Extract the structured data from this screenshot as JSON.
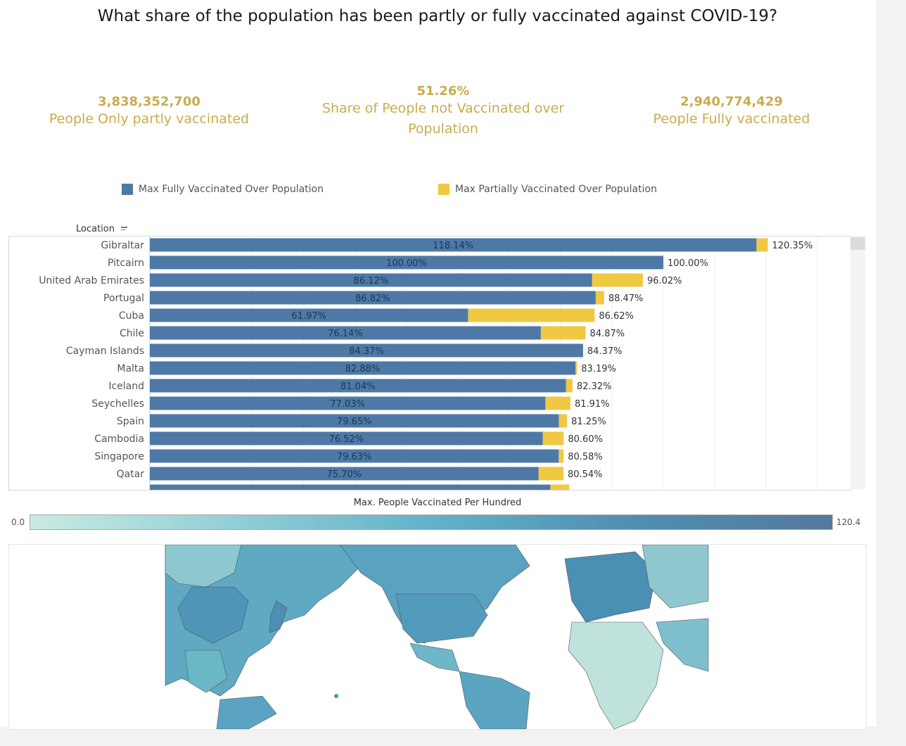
{
  "title": "What share of the population has been partly or fully vaccinated against COVID-19?",
  "kpis": {
    "partly": {
      "value": "3,838,352,700",
      "label": "People Only partly vaccinated"
    },
    "not_vaccinated": {
      "value": "51.26%",
      "label": "Share of People not Vaccinated over Population"
    },
    "fully": {
      "value": "2,940,774,429",
      "label": "People Fully vaccinated"
    }
  },
  "legend": {
    "fully": "Max Fully Vaccinated Over Population",
    "partially": "Max Partially Vaccinated Over Population"
  },
  "colors": {
    "fully": "#4e79a7",
    "partially": "#f0c842",
    "kpi_text": "#c9ab4f",
    "map_low": "#c8ebe2",
    "map_high": "#55799c"
  },
  "row_header": "Location",
  "chart_data": {
    "type": "bar",
    "orientation": "horizontal",
    "stacked": true,
    "categories": [
      "Gibraltar",
      "Pitcairn",
      "United Arab Emirates",
      "Portugal",
      "Cuba",
      "Chile",
      "Cayman Islands",
      "Malta",
      "Iceland",
      "Seychelles",
      "Spain",
      "Cambodia",
      "Singapore",
      "Qatar"
    ],
    "series": [
      {
        "name": "Max Fully Vaccinated Over Population",
        "values": [
          118.14,
          100.0,
          86.12,
          86.82,
          61.97,
          76.14,
          84.37,
          82.88,
          81.04,
          77.03,
          79.65,
          76.52,
          79.63,
          75.7
        ]
      },
      {
        "name": "Max Partially Vaccinated Over Population",
        "totals": [
          120.35,
          100.0,
          96.02,
          88.47,
          86.62,
          84.87,
          84.37,
          83.19,
          82.32,
          81.91,
          81.25,
          80.6,
          80.58,
          80.54
        ]
      }
    ],
    "fully_labels": [
      "118.14%",
      "100.00%",
      "86.12%",
      "86.82%",
      "61.97%",
      "76.14%",
      "84.37%",
      "82.88%",
      "81.04%",
      "77.03%",
      "79.65%",
      "76.52%",
      "79.63%",
      "75.70%"
    ],
    "total_labels": [
      "120.35%",
      "100.00%",
      "96.02%",
      "88.47%",
      "86.62%",
      "84.87%",
      "84.37%",
      "83.19%",
      "82.32%",
      "81.91%",
      "81.25%",
      "80.60%",
      "80.58%",
      "80.54%"
    ],
    "xlim": [
      0,
      135
    ]
  },
  "color_legend": {
    "title": "Max. People Vaccinated Per Hundred",
    "min": "0.0",
    "max": "120.4"
  }
}
